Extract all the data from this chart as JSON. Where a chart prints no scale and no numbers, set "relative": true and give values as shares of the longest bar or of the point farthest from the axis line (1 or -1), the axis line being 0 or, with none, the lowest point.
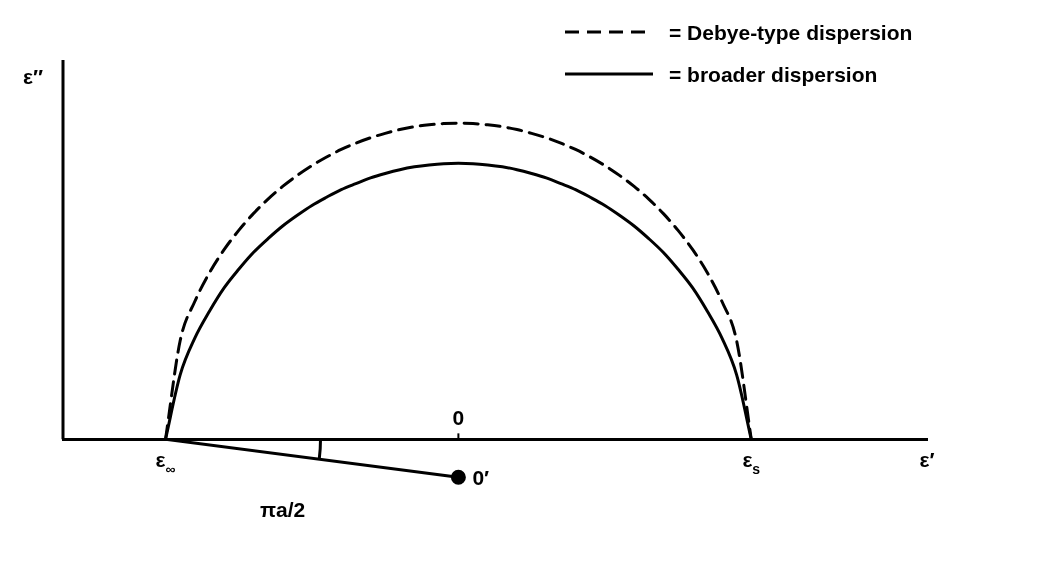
{
  "chart_data": {
    "type": "line",
    "relative": true,
    "xlabel": "ε′",
    "ylabel": "ε″",
    "legend": "top right",
    "categories": [
      null,
      null,
      null,
      null,
      null,
      null,
      null,
      "ε$_{∞}$",
      null,
      null,
      null,
      null,
      null,
      null,
      null,
      null,
      null,
      null,
      null,
      null,
      null,
      null,
      null,
      null,
      null,
      null,
      null,
      null,
      null,
      null,
      null,
      null,
      null,
      null,
      null,
      null,
      null,
      null,
      null,
      null,
      null,
      null,
      null,
      null,
      null,
      null,
      null,
      "ε$_{s}$",
      null,
      null,
      null,
      null,
      null,
      null,
      null,
      null,
      null,
      null,
      null,
      null
    ],
    "series": [
      {
        "name": "= Debye-type dispersion",
        "color": "#000000",
        "line_style": "dashed",
        "values": [
          null,
          null,
          null,
          null,
          null,
          null,
          null,
          0,
          0.312,
          0.436,
          0.527,
          0.6,
          0.661,
          0.714,
          0.76,
          0.8,
          0.835,
          0.866,
          0.893,
          0.917,
          0.937,
          0.954,
          0.968,
          0.98,
          0.989,
          0.995,
          0.999,
          1,
          0.999,
          0.995,
          0.989,
          0.98,
          0.968,
          0.954,
          0.937,
          0.917,
          0.893,
          0.866,
          0.835,
          0.8,
          0.76,
          0.714,
          0.661,
          0.6,
          0.527,
          0.436,
          0.312,
          0,
          null,
          null,
          null,
          null,
          null,
          null,
          null,
          null,
          null,
          null,
          null,
          null
        ]
      },
      {
        "name": "= broader dispersion",
        "color": "#000000",
        "line_style": "solid",
        "values": [
          null,
          null,
          null,
          null,
          null,
          null,
          null,
          0,
          0.204,
          0.32,
          0.405,
          0.479,
          0.538,
          0.591,
          0.635,
          0.675,
          0.709,
          0.74,
          0.766,
          0.79,
          0.809,
          0.827,
          0.841,
          0.853,
          0.862,
          0.868,
          0.872,
          0.873,
          0.872,
          0.868,
          0.862,
          0.853,
          0.841,
          0.827,
          0.809,
          0.79,
          0.766,
          0.74,
          0.709,
          0.675,
          0.635,
          0.591,
          0.538,
          0.479,
          0.405,
          0.32,
          0.204,
          0,
          null,
          null,
          null,
          null,
          null,
          null,
          null,
          null,
          null,
          null,
          null,
          null
        ]
      },
      {
        "color": "#000000",
        "line_style": "solid",
        "marker": "circle",
        "values": [
          null,
          null,
          null,
          null,
          null,
          null,
          null,
          0,
          null,
          null,
          null,
          null,
          null,
          null,
          null,
          null,
          null,
          null,
          null,
          null,
          null,
          null,
          null,
          null,
          null,
          null,
          null,
          -0.12,
          null,
          null,
          null,
          null,
          null,
          null,
          null,
          null,
          null,
          null,
          null,
          null,
          null,
          null,
          null,
          null,
          null,
          null,
          null,
          null,
          null,
          null,
          null,
          null,
          null,
          null,
          null,
          null,
          null,
          null,
          null,
          null
        ]
      }
    ],
    "annotations": [
      "0",
      "0′",
      "πa/2"
    ]
  }
}
